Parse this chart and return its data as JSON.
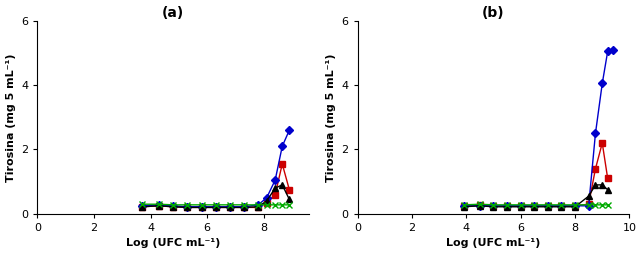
{
  "panel_a": {
    "title": "(a)",
    "xlabel": "Log (UFC mL⁻¹)",
    "ylabel": "Tirosina (mg 5 mL⁻¹)",
    "xlim": [
      0,
      9.6
    ],
    "ylim": [
      0,
      6
    ],
    "xticks": [
      0,
      2,
      4,
      6,
      8
    ],
    "yticks": [
      0,
      2,
      4,
      6
    ],
    "series": [
      {
        "x": [
          3.7,
          4.3,
          4.8,
          5.3,
          5.8,
          6.3,
          6.8,
          7.3,
          7.8,
          8.1,
          8.4,
          8.65,
          8.9
        ],
        "y": [
          0.22,
          0.25,
          0.22,
          0.2,
          0.2,
          0.2,
          0.2,
          0.2,
          0.2,
          0.35,
          0.6,
          1.55,
          0.75
        ],
        "color": "#cc0000",
        "marker": "s",
        "markersize": 4,
        "linewidth": 1.0
      },
      {
        "x": [
          3.7,
          4.3,
          4.8,
          5.3,
          5.8,
          6.3,
          6.8,
          7.3,
          7.8,
          8.1,
          8.4,
          8.65,
          8.9
        ],
        "y": [
          0.25,
          0.28,
          0.25,
          0.22,
          0.22,
          0.22,
          0.22,
          0.22,
          0.28,
          0.5,
          1.05,
          2.1,
          2.6
        ],
        "color": "#0000cc",
        "marker": "D",
        "markersize": 4,
        "linewidth": 1.0
      },
      {
        "x": [
          3.7,
          4.3,
          4.8,
          5.3,
          5.8,
          6.3,
          6.8,
          7.3,
          7.8,
          8.1,
          8.4,
          8.65,
          8.9
        ],
        "y": [
          0.22,
          0.25,
          0.22,
          0.2,
          0.2,
          0.2,
          0.2,
          0.2,
          0.22,
          0.4,
          0.8,
          0.9,
          0.45
        ],
        "color": "#000000",
        "marker": "^",
        "markersize": 4,
        "linewidth": 1.0
      },
      {
        "x": [
          3.7,
          4.3,
          4.8,
          5.3,
          5.8,
          6.3,
          6.8,
          7.3,
          7.8,
          8.1,
          8.4,
          8.65,
          8.9
        ],
        "y": [
          0.3,
          0.3,
          0.28,
          0.28,
          0.28,
          0.28,
          0.28,
          0.28,
          0.28,
          0.28,
          0.28,
          0.28,
          0.28
        ],
        "color": "#00aa00",
        "marker": "x",
        "markersize": 5,
        "linewidth": 1.0
      }
    ]
  },
  "panel_b": {
    "title": "(b)",
    "xlabel": "Log (UFC mL⁻¹)",
    "ylabel": "Tirosina (mg 5 mL⁻¹)",
    "xlim": [
      0,
      10.0
    ],
    "ylim": [
      0,
      6
    ],
    "xticks": [
      0,
      2,
      4,
      6,
      8,
      10
    ],
    "yticks": [
      0,
      2,
      4,
      6
    ],
    "series": [
      {
        "x": [
          3.9,
          4.5,
          5.0,
          5.5,
          6.0,
          6.5,
          7.0,
          7.5,
          8.0,
          8.5,
          8.75,
          9.0,
          9.2
        ],
        "y": [
          0.25,
          0.28,
          0.25,
          0.25,
          0.25,
          0.25,
          0.25,
          0.25,
          0.25,
          0.3,
          1.4,
          2.2,
          1.1
        ],
        "color": "#cc0000",
        "marker": "s",
        "markersize": 4,
        "linewidth": 1.0
      },
      {
        "x": [
          3.9,
          4.5,
          5.0,
          5.5,
          6.0,
          6.5,
          7.0,
          7.5,
          8.0,
          8.5,
          8.75,
          9.0,
          9.2,
          9.4
        ],
        "y": [
          0.25,
          0.25,
          0.25,
          0.25,
          0.25,
          0.25,
          0.25,
          0.25,
          0.25,
          0.25,
          2.5,
          4.05,
          5.05,
          5.1
        ],
        "color": "#0000cc",
        "marker": "D",
        "markersize": 4,
        "linewidth": 1.0
      },
      {
        "x": [
          3.9,
          4.5,
          5.0,
          5.5,
          6.0,
          6.5,
          7.0,
          7.5,
          8.0,
          8.5,
          8.75,
          9.0,
          9.2
        ],
        "y": [
          0.22,
          0.25,
          0.22,
          0.22,
          0.22,
          0.22,
          0.22,
          0.22,
          0.22,
          0.55,
          0.9,
          0.9,
          0.75
        ],
        "color": "#000000",
        "marker": "^",
        "markersize": 4,
        "linewidth": 1.0
      },
      {
        "x": [
          3.9,
          4.5,
          5.0,
          5.5,
          6.0,
          6.5,
          7.0,
          7.5,
          8.0,
          8.5,
          8.75,
          9.0,
          9.2
        ],
        "y": [
          0.28,
          0.3,
          0.28,
          0.28,
          0.28,
          0.28,
          0.28,
          0.28,
          0.28,
          0.28,
          0.28,
          0.28,
          0.28
        ],
        "color": "#00aa00",
        "marker": "x",
        "markersize": 5,
        "linewidth": 1.0
      }
    ]
  },
  "background_color": "#ffffff",
  "title_fontsize": 10,
  "axis_label_fontsize": 8,
  "tick_fontsize": 8
}
